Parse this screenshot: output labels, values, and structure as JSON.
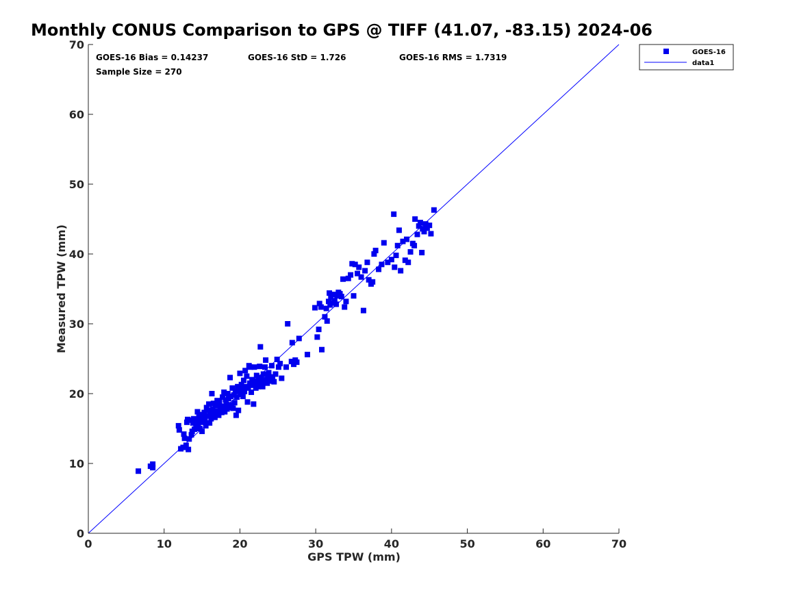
{
  "chart_data": {
    "type": "scatter",
    "title": "Monthly CONUS Comparison to GPS @ TIFF (41.07, -83.15) 2024-06",
    "xlabel": "GPS TPW (mm)",
    "ylabel": "Measured TPW (mm)",
    "xlim": [
      0,
      70
    ],
    "ylim": [
      0,
      70
    ],
    "xticks": [
      0,
      10,
      20,
      30,
      40,
      50,
      60,
      70
    ],
    "yticks": [
      0,
      10,
      20,
      30,
      40,
      50,
      60,
      70
    ],
    "grid": false,
    "legend_placement": "top-right-outside",
    "colors": {
      "marker": "#0000ee",
      "line": "#0000ff",
      "axis": "#262626"
    },
    "stats": {
      "bias": "GOES-16 Bias = 0.14237",
      "std": "GOES-16 StD = 1.726",
      "rms": "GOES-16 RMS = 1.7319",
      "sample": "Sample Size = 270"
    },
    "series": [
      {
        "name": "GOES-16",
        "kind": "scatter",
        "points": [
          [
            6.6,
            8.9
          ],
          [
            8.2,
            9.6
          ],
          [
            8.5,
            9.9
          ],
          [
            8.5,
            9.4
          ],
          [
            11.9,
            15.4
          ],
          [
            12.0,
            14.8
          ],
          [
            12.2,
            12.1
          ],
          [
            12.5,
            12.3
          ],
          [
            12.6,
            14.2
          ],
          [
            12.7,
            13.6
          ],
          [
            12.9,
            12.6
          ],
          [
            13.0,
            15.9
          ],
          [
            13.1,
            16.3
          ],
          [
            13.2,
            12.0
          ],
          [
            13.3,
            13.5
          ],
          [
            13.5,
            16.2
          ],
          [
            13.6,
            14.1
          ],
          [
            13.7,
            14.6
          ],
          [
            13.8,
            15.8
          ],
          [
            13.9,
            16.4
          ],
          [
            14.0,
            14.9
          ],
          [
            14.2,
            15.3
          ],
          [
            14.3,
            16.2
          ],
          [
            14.4,
            17.4
          ],
          [
            14.5,
            15.5
          ],
          [
            14.6,
            16.7
          ],
          [
            14.7,
            15.0
          ],
          [
            14.8,
            16.0
          ],
          [
            14.9,
            17.0
          ],
          [
            15.0,
            14.6
          ],
          [
            15.1,
            15.9
          ],
          [
            15.2,
            16.6
          ],
          [
            15.3,
            17.3
          ],
          [
            15.4,
            16.1
          ],
          [
            15.5,
            15.4
          ],
          [
            15.6,
            18.0
          ],
          [
            15.7,
            16.8
          ],
          [
            15.8,
            17.6
          ],
          [
            15.9,
            18.5
          ],
          [
            16.0,
            15.8
          ],
          [
            16.1,
            17.1
          ],
          [
            16.2,
            16.4
          ],
          [
            16.3,
            20.0
          ],
          [
            16.4,
            17.8
          ],
          [
            16.5,
            18.6
          ],
          [
            16.6,
            17.2
          ],
          [
            16.7,
            16.6
          ],
          [
            16.8,
            18.3
          ],
          [
            16.9,
            17.0
          ],
          [
            17.0,
            19.0
          ],
          [
            17.1,
            17.5
          ],
          [
            17.2,
            16.9
          ],
          [
            17.3,
            18.9
          ],
          [
            17.4,
            17.6
          ],
          [
            17.5,
            18.2
          ],
          [
            17.6,
            17.3
          ],
          [
            17.7,
            19.5
          ],
          [
            17.8,
            18.0
          ],
          [
            17.9,
            20.2
          ],
          [
            18.0,
            17.4
          ],
          [
            18.1,
            19.1
          ],
          [
            18.2,
            18.5
          ],
          [
            18.3,
            17.8
          ],
          [
            18.4,
            20.0
          ],
          [
            18.5,
            19.3
          ],
          [
            18.6,
            18.0
          ],
          [
            18.7,
            22.3
          ],
          [
            18.8,
            19.6
          ],
          [
            18.9,
            18.4
          ],
          [
            19.0,
            20.8
          ],
          [
            19.1,
            17.9
          ],
          [
            19.2,
            19.8
          ],
          [
            19.3,
            18.7
          ],
          [
            19.4,
            20.3
          ],
          [
            19.5,
            16.9
          ],
          [
            19.6,
            19.5
          ],
          [
            19.7,
            21.0
          ],
          [
            19.8,
            17.6
          ],
          [
            19.9,
            20.5
          ],
          [
            20.0,
            22.9
          ],
          [
            20.1,
            19.9
          ],
          [
            20.2,
            21.3
          ],
          [
            20.3,
            20.6
          ],
          [
            20.4,
            19.6
          ],
          [
            20.5,
            21.9
          ],
          [
            20.6,
            20.3
          ],
          [
            20.7,
            23.3
          ],
          [
            20.8,
            21.0
          ],
          [
            20.9,
            22.5
          ],
          [
            21.0,
            18.8
          ],
          [
            21.1,
            20.8
          ],
          [
            21.2,
            24.0
          ],
          [
            21.3,
            21.5
          ],
          [
            21.4,
            23.8
          ],
          [
            21.5,
            20.2
          ],
          [
            21.6,
            22.0
          ],
          [
            21.7,
            21.2
          ],
          [
            21.8,
            18.5
          ],
          [
            21.9,
            23.8
          ],
          [
            22.0,
            21.8
          ],
          [
            22.1,
            20.8
          ],
          [
            22.2,
            22.6
          ],
          [
            22.3,
            21.5
          ],
          [
            22.4,
            21.0
          ],
          [
            22.5,
            22.2
          ],
          [
            22.6,
            23.9
          ],
          [
            22.7,
            26.7
          ],
          [
            22.8,
            22.3
          ],
          [
            22.9,
            21.5
          ],
          [
            23.0,
            21.0
          ],
          [
            23.1,
            22.8
          ],
          [
            23.2,
            21.8
          ],
          [
            23.3,
            23.8
          ],
          [
            23.4,
            24.8
          ],
          [
            23.5,
            22.0
          ],
          [
            23.6,
            21.5
          ],
          [
            23.7,
            22.3
          ],
          [
            23.8,
            23.0
          ],
          [
            23.9,
            22.2
          ],
          [
            24.0,
            21.8
          ],
          [
            24.2,
            24.0
          ],
          [
            24.3,
            22.4
          ],
          [
            24.5,
            21.7
          ],
          [
            24.7,
            22.8
          ],
          [
            24.9,
            24.9
          ],
          [
            25.1,
            23.8
          ],
          [
            25.3,
            24.3
          ],
          [
            25.5,
            22.2
          ],
          [
            26.1,
            23.8
          ],
          [
            26.3,
            30.0
          ],
          [
            26.8,
            24.6
          ],
          [
            26.9,
            27.3
          ],
          [
            27.1,
            24.2
          ],
          [
            27.3,
            24.8
          ],
          [
            27.5,
            24.5
          ],
          [
            27.8,
            27.9
          ],
          [
            28.9,
            25.6
          ],
          [
            29.9,
            32.3
          ],
          [
            30.2,
            28.1
          ],
          [
            30.4,
            29.2
          ],
          [
            30.5,
            32.9
          ],
          [
            30.7,
            32.4
          ],
          [
            30.8,
            26.3
          ],
          [
            31.2,
            31.0
          ],
          [
            31.4,
            32.2
          ],
          [
            31.5,
            30.4
          ],
          [
            31.7,
            33.2
          ],
          [
            31.8,
            34.4
          ],
          [
            31.9,
            32.7
          ],
          [
            32.0,
            33.8
          ],
          [
            32.2,
            33.0
          ],
          [
            32.4,
            34.2
          ],
          [
            32.5,
            33.3
          ],
          [
            32.7,
            32.8
          ],
          [
            32.8,
            34.0
          ],
          [
            33.0,
            34.5
          ],
          [
            33.2,
            34.3
          ],
          [
            33.4,
            33.9
          ],
          [
            33.6,
            36.4
          ],
          [
            33.8,
            32.4
          ],
          [
            34.0,
            33.2
          ],
          [
            34.3,
            36.5
          ],
          [
            34.6,
            37.0
          ],
          [
            34.8,
            38.6
          ],
          [
            35.0,
            34.0
          ],
          [
            35.2,
            38.5
          ],
          [
            35.5,
            37.2
          ],
          [
            35.7,
            38.1
          ],
          [
            36.0,
            36.7
          ],
          [
            36.3,
            31.9
          ],
          [
            36.5,
            37.6
          ],
          [
            36.8,
            38.8
          ],
          [
            37.0,
            36.3
          ],
          [
            37.3,
            35.7
          ],
          [
            37.5,
            36.0
          ],
          [
            37.7,
            40.0
          ],
          [
            37.9,
            40.5
          ],
          [
            38.3,
            37.8
          ],
          [
            38.7,
            38.5
          ],
          [
            39.0,
            41.6
          ],
          [
            39.5,
            38.8
          ],
          [
            40.0,
            39.2
          ],
          [
            40.3,
            45.7
          ],
          [
            40.4,
            38.1
          ],
          [
            40.6,
            39.8
          ],
          [
            40.8,
            41.2
          ],
          [
            41.0,
            43.4
          ],
          [
            41.2,
            37.6
          ],
          [
            41.5,
            41.8
          ],
          [
            41.8,
            39.1
          ],
          [
            42.0,
            42.1
          ],
          [
            42.2,
            38.8
          ],
          [
            42.5,
            40.3
          ],
          [
            42.8,
            41.5
          ],
          [
            43.0,
            41.2
          ],
          [
            43.1,
            45.0
          ],
          [
            43.4,
            42.8
          ],
          [
            43.6,
            44.0
          ],
          [
            43.8,
            44.5
          ],
          [
            44.0,
            40.2
          ],
          [
            44.1,
            43.6
          ],
          [
            44.3,
            43.2
          ],
          [
            44.5,
            44.3
          ],
          [
            44.7,
            43.7
          ],
          [
            45.0,
            44.1
          ],
          [
            45.2,
            42.9
          ],
          [
            45.6,
            46.3
          ]
        ]
      },
      {
        "name": "data1",
        "kind": "line",
        "points": [
          [
            0,
            0
          ],
          [
            70,
            70
          ]
        ]
      }
    ]
  }
}
